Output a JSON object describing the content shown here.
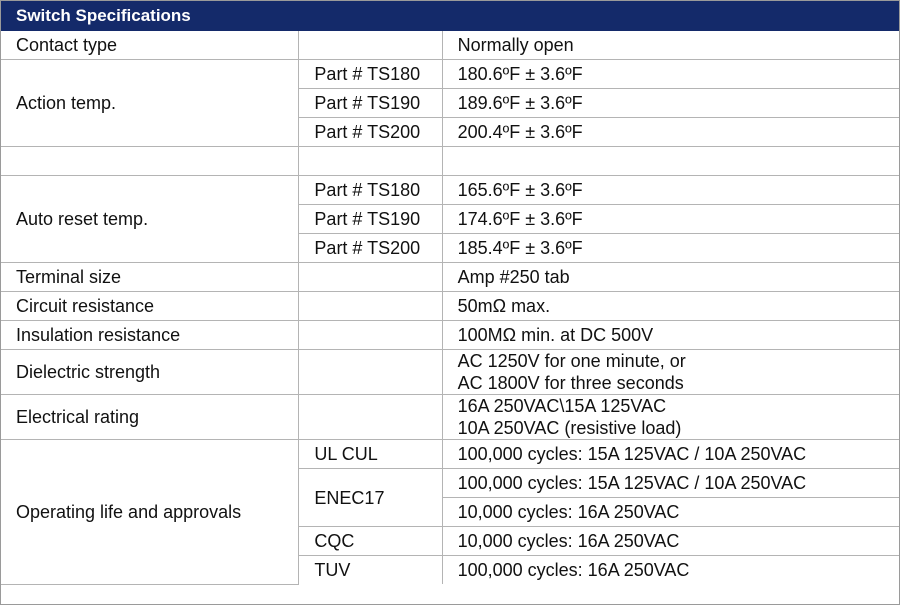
{
  "header": {
    "title": "Switch Specifications"
  },
  "rows": {
    "contact_type": {
      "label": "Contact type",
      "value": "Normally open"
    },
    "action_temp": {
      "label": "Action temp.",
      "items": [
        {
          "part": "Part # TS180",
          "value": "180.6ºF ± 3.6ºF"
        },
        {
          "part": "Part # TS190",
          "value": "189.6ºF ± 3.6ºF"
        },
        {
          "part": "Part # TS200",
          "value": "200.4ºF ± 3.6ºF"
        }
      ]
    },
    "auto_reset_temp": {
      "label": "Auto reset temp.",
      "items": [
        {
          "part": "Part # TS180",
          "value": "165.6ºF ± 3.6ºF"
        },
        {
          "part": "Part # TS190",
          "value": "174.6ºF ± 3.6ºF"
        },
        {
          "part": "Part # TS200",
          "value": "185.4ºF ± 3.6ºF"
        }
      ]
    },
    "terminal_size": {
      "label": "Terminal size",
      "value": "Amp #250 tab"
    },
    "circuit_resistance": {
      "label": "Circuit resistance",
      "value": "50mΩ max."
    },
    "insulation_resistance": {
      "label": "Insulation resistance",
      "value": "100MΩ min. at DC 500V"
    },
    "dielectric_strength": {
      "label": "Dielectric strength",
      "line1": "AC 1250V for one minute, or",
      "line2": "AC 1800V for three seconds"
    },
    "electrical_rating": {
      "label": "Electrical rating",
      "line1": "16A 250VAC\\15A 125VAC",
      "line2": "10A 250VAC (resistive load)"
    },
    "operating_life": {
      "label": "Operating life and approvals",
      "ul_cul": {
        "name": "UL CUL",
        "value": "100,000 cycles: 15A 125VAC / 10A 250VAC"
      },
      "enec17": {
        "name": "ENEC17",
        "value1": "100,000 cycles: 15A 125VAC / 10A 250VAC",
        "value2": "10,000 cycles: 16A 250VAC"
      },
      "cqc": {
        "name": "CQC",
        "value": "10,000 cycles: 16A 250VAC"
      },
      "tuv": {
        "name": "TUV",
        "value": "100,000 cycles: 16A 250VAC"
      }
    }
  }
}
